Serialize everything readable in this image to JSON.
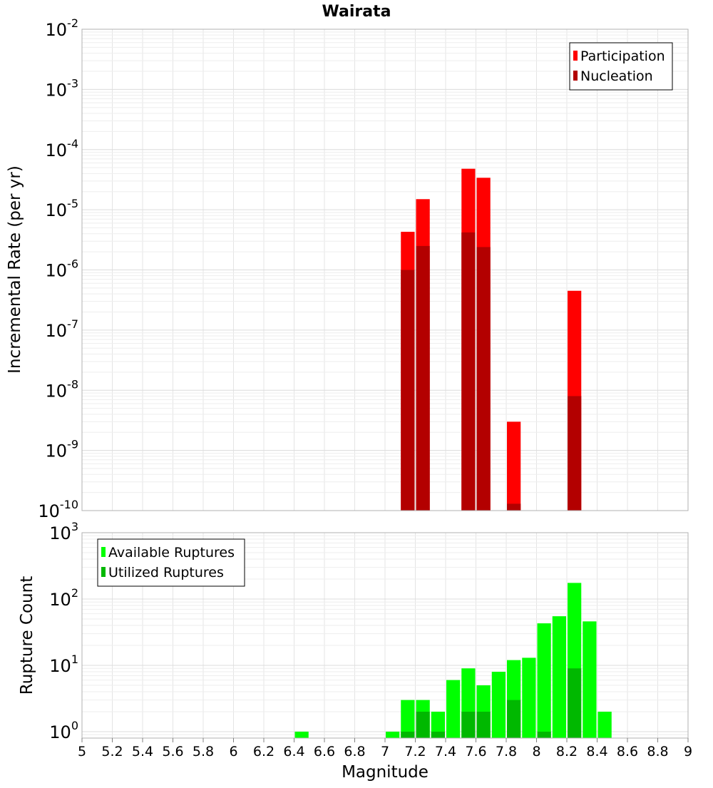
{
  "chart_data": [
    {
      "type": "bar",
      "title": "Wairata",
      "xlabel": "",
      "ylabel": "Incremental Rate (per yr)",
      "xlim": [
        5,
        9
      ],
      "ylim": [
        1e-10,
        0.01
      ],
      "yscale": "log",
      "grid": true,
      "legend_position": "top-right",
      "ytick_exponents": [
        "-10",
        "-9",
        "-8",
        "-7",
        "-6",
        "-5",
        "-4",
        "-3",
        "-2"
      ],
      "ytick_base": "10",
      "x": [
        7.15,
        7.25,
        7.55,
        7.65,
        7.85,
        8.25
      ],
      "series": [
        {
          "name": "Participation",
          "color": "#ff0000",
          "values": [
            4.3e-06,
            1.5e-05,
            4.8e-05,
            3.4e-05,
            3e-09,
            4.5e-07
          ]
        },
        {
          "name": "Nucleation",
          "color": "#b30000",
          "values": [
            1e-06,
            2.5e-06,
            4.2e-06,
            2.4e-06,
            1.3e-10,
            8e-09
          ]
        }
      ]
    },
    {
      "type": "bar",
      "title": "",
      "xlabel": "Magnitude",
      "ylabel": "Rupture Count",
      "xlim": [
        5,
        9
      ],
      "ylim": [
        0.8,
        1000
      ],
      "yscale": "log",
      "grid": true,
      "legend_position": "top-left",
      "ytick_exponents": [
        "0",
        "1",
        "2",
        "3"
      ],
      "ytick_base": "10",
      "xtick_labels": [
        "5",
        "5.2",
        "5.4",
        "5.6",
        "5.8",
        "6",
        "6.2",
        "6.4",
        "6.6",
        "6.8",
        "7",
        "7.2",
        "7.4",
        "7.6",
        "7.8",
        "8",
        "8.2",
        "8.4",
        "8.6",
        "8.8",
        "9"
      ],
      "series": [
        {
          "name": "Available Ruptures",
          "color": "#00ff00",
          "x": [
            6.45,
            7.05,
            7.15,
            7.25,
            7.35,
            7.45,
            7.55,
            7.65,
            7.75,
            7.85,
            7.95,
            8.05,
            8.15,
            8.25,
            8.35,
            8.45
          ],
          "values": [
            1,
            1,
            3,
            3,
            2,
            6,
            9,
            5,
            8,
            12,
            13,
            43,
            55,
            175,
            46,
            2
          ]
        },
        {
          "name": "Utilized Ruptures",
          "color": "#00b800",
          "x": [
            7.15,
            7.25,
            7.35,
            7.55,
            7.65,
            7.85,
            8.05,
            8.25
          ],
          "values": [
            1,
            2,
            1,
            2,
            2,
            3,
            1,
            9
          ]
        }
      ]
    }
  ]
}
